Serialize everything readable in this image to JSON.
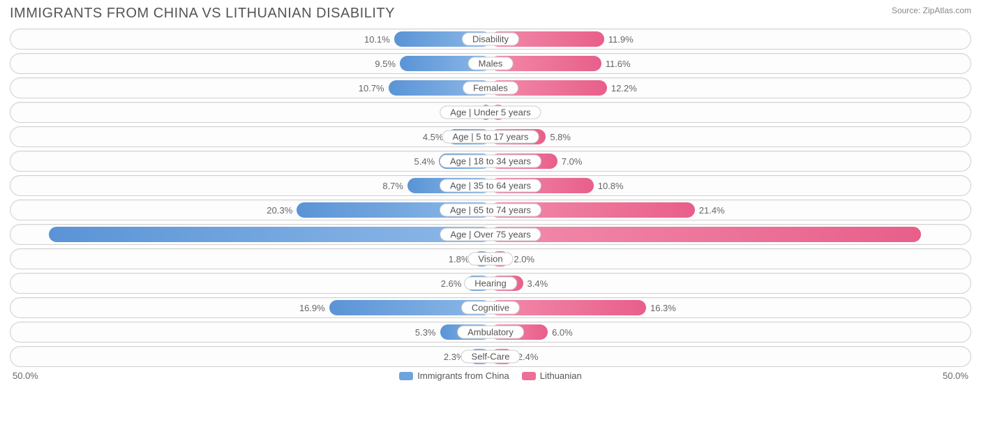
{
  "title": "IMMIGRANTS FROM CHINA VS LITHUANIAN DISABILITY",
  "source": "Source: ZipAtlas.com",
  "axis_max": 50.0,
  "axis_left_label": "50.0%",
  "axis_right_label": "50.0%",
  "colors": {
    "left_bar_start": "#8db8e8",
    "left_bar_end": "#5a94d6",
    "right_bar_start": "#f28bab",
    "right_bar_end": "#e85f8a",
    "row_border": "#d0d0d0",
    "text": "#666666",
    "title_text": "#555555",
    "background": "#ffffff"
  },
  "legend": {
    "left": {
      "label": "Immigrants from China",
      "color": "#6fa3dc"
    },
    "right": {
      "label": "Lithuanian",
      "color": "#ed6f95"
    }
  },
  "rows": [
    {
      "label": "Disability",
      "left_val": 10.1,
      "left_text": "10.1%",
      "right_val": 11.9,
      "right_text": "11.9%"
    },
    {
      "label": "Males",
      "left_val": 9.5,
      "left_text": "9.5%",
      "right_val": 11.6,
      "right_text": "11.6%"
    },
    {
      "label": "Females",
      "left_val": 10.7,
      "left_text": "10.7%",
      "right_val": 12.2,
      "right_text": "12.2%"
    },
    {
      "label": "Age | Under 5 years",
      "left_val": 0.96,
      "left_text": "0.96%",
      "right_val": 1.6,
      "right_text": "1.6%"
    },
    {
      "label": "Age | 5 to 17 years",
      "left_val": 4.5,
      "left_text": "4.5%",
      "right_val": 5.8,
      "right_text": "5.8%"
    },
    {
      "label": "Age | 18 to 34 years",
      "left_val": 5.4,
      "left_text": "5.4%",
      "right_val": 7.0,
      "right_text": "7.0%"
    },
    {
      "label": "Age | 35 to 64 years",
      "left_val": 8.7,
      "left_text": "8.7%",
      "right_val": 10.8,
      "right_text": "10.8%"
    },
    {
      "label": "Age | 65 to 74 years",
      "left_val": 20.3,
      "left_text": "20.3%",
      "right_val": 21.4,
      "right_text": "21.4%"
    },
    {
      "label": "Age | Over 75 years",
      "left_val": 46.3,
      "left_text": "46.3%",
      "right_val": 45.1,
      "right_text": "45.1%"
    },
    {
      "label": "Vision",
      "left_val": 1.8,
      "left_text": "1.8%",
      "right_val": 2.0,
      "right_text": "2.0%"
    },
    {
      "label": "Hearing",
      "left_val": 2.6,
      "left_text": "2.6%",
      "right_val": 3.4,
      "right_text": "3.4%"
    },
    {
      "label": "Cognitive",
      "left_val": 16.9,
      "left_text": "16.9%",
      "right_val": 16.3,
      "right_text": "16.3%"
    },
    {
      "label": "Ambulatory",
      "left_val": 5.3,
      "left_text": "5.3%",
      "right_val": 6.0,
      "right_text": "6.0%"
    },
    {
      "label": "Self-Care",
      "left_val": 2.3,
      "left_text": "2.3%",
      "right_val": 2.4,
      "right_text": "2.4%"
    }
  ]
}
